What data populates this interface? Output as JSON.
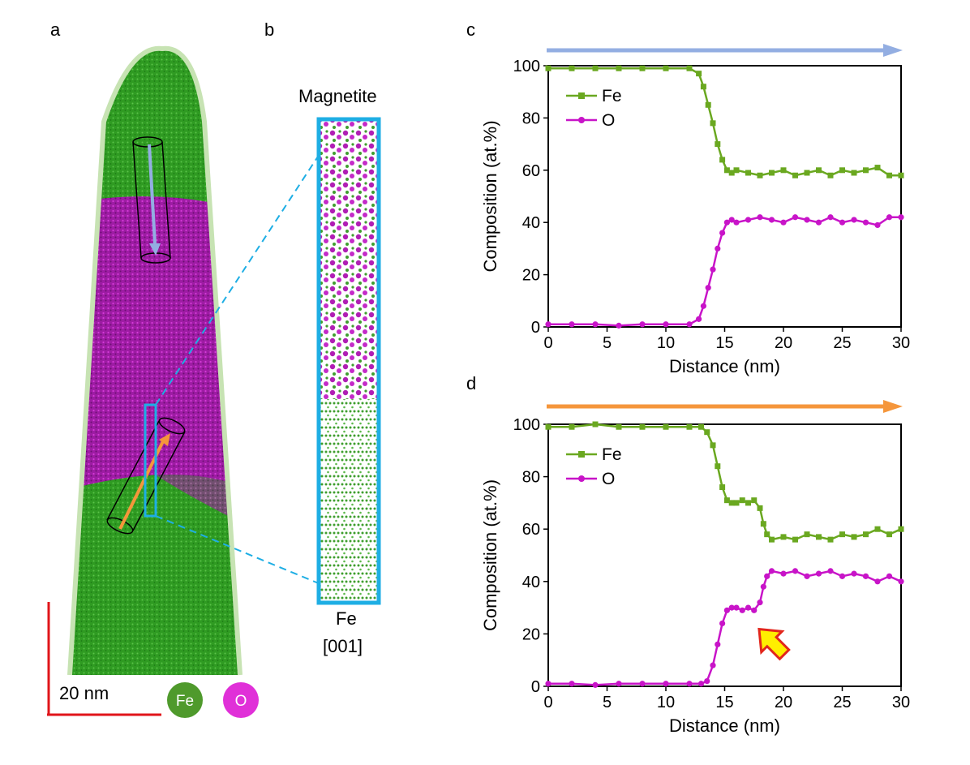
{
  "panels": {
    "a": "a",
    "b": "b",
    "c": "c",
    "d": "d"
  },
  "panel_a": {
    "scale_bar_label": "20 nm",
    "legend": [
      {
        "symbol": "Fe",
        "color": "#4f9a2c"
      },
      {
        "symbol": "O",
        "color": "#e030d8"
      }
    ],
    "colors": {
      "fe": "#2f9b22",
      "o": "#a01aa6",
      "outline": "#c7e3b3",
      "cylinder_top_arrow": "#93aee2",
      "cylinder_bottom_arrow": "#f5963b",
      "roi": "#1eaee4",
      "scale": "#e0141a"
    }
  },
  "panel_b": {
    "top_label": "Magnetite",
    "bottom_label_1": "Fe",
    "bottom_label_2": "[001]",
    "colors": {
      "frame": "#1eaee4",
      "fe": "#2f9b22",
      "o": "#a01aa6"
    }
  },
  "chart_data": [
    {
      "id": "c",
      "type": "line",
      "xlabel": "Distance (nm)",
      "ylabel": "Composition (at.%)",
      "xlim": [
        0,
        30
      ],
      "ylim": [
        0,
        100
      ],
      "xticks": [
        0,
        5,
        10,
        15,
        20,
        25,
        30
      ],
      "yticks": [
        0,
        20,
        40,
        60,
        80,
        100
      ],
      "arrow_color": "#93aee2",
      "legend": [
        "Fe",
        "O"
      ],
      "series": [
        {
          "name": "Fe",
          "color": "#6aa820",
          "marker": "square",
          "x": [
            0,
            2,
            4,
            6,
            8,
            10,
            12,
            12.8,
            13.2,
            13.6,
            14.0,
            14.4,
            14.8,
            15.2,
            15.6,
            16,
            17,
            18,
            19,
            20,
            21,
            22,
            23,
            24,
            25,
            26,
            27,
            28,
            29,
            30
          ],
          "y": [
            99,
            99,
            99,
            99,
            99,
            99,
            99,
            97,
            92,
            85,
            78,
            70,
            64,
            60,
            59,
            60,
            59,
            58,
            59,
            60,
            58,
            59,
            60,
            58,
            60,
            59,
            60,
            61,
            58,
            58
          ]
        },
        {
          "name": "O",
          "color": "#c814c8",
          "marker": "circle",
          "x": [
            0,
            2,
            4,
            6,
            8,
            10,
            12,
            12.8,
            13.2,
            13.6,
            14.0,
            14.4,
            14.8,
            15.2,
            15.6,
            16,
            17,
            18,
            19,
            20,
            21,
            22,
            23,
            24,
            25,
            26,
            27,
            28,
            29,
            30
          ],
          "y": [
            1,
            1,
            1,
            0.5,
            1,
            1,
            1,
            3,
            8,
            15,
            22,
            30,
            36,
            40,
            41,
            40,
            41,
            42,
            41,
            40,
            42,
            41,
            40,
            42,
            40,
            41,
            40,
            39,
            42,
            42
          ]
        }
      ]
    },
    {
      "id": "d",
      "type": "line",
      "xlabel": "Distance (nm)",
      "ylabel": "Composition (at.%)",
      "xlim": [
        0,
        30
      ],
      "ylim": [
        0,
        100
      ],
      "xticks": [
        0,
        5,
        10,
        15,
        20,
        25,
        30
      ],
      "yticks": [
        0,
        20,
        40,
        60,
        80,
        100
      ],
      "arrow_color": "#f5963b",
      "annotation_arrow": {
        "x": 19,
        "y": 17,
        "color": "#ffee00",
        "edge": "#e2261c"
      },
      "legend": [
        "Fe",
        "O"
      ],
      "series": [
        {
          "name": "Fe",
          "color": "#6aa820",
          "marker": "square",
          "x": [
            0,
            2,
            4,
            6,
            8,
            10,
            12,
            13,
            13.5,
            14,
            14.4,
            14.8,
            15.2,
            15.6,
            16,
            16.5,
            17,
            17.5,
            18,
            18.3,
            18.6,
            19,
            20,
            21,
            22,
            23,
            24,
            25,
            26,
            27,
            28,
            29,
            30
          ],
          "y": [
            99,
            99,
            100,
            99,
            99,
            99,
            99,
            99,
            97,
            92,
            84,
            76,
            71,
            70,
            70,
            71,
            70,
            71,
            68,
            62,
            58,
            56,
            57,
            56,
            58,
            57,
            56,
            58,
            57,
            58,
            60,
            58,
            60
          ]
        },
        {
          "name": "O",
          "color": "#c814c8",
          "marker": "circle",
          "x": [
            0,
            2,
            4,
            6,
            8,
            10,
            12,
            13,
            13.5,
            14,
            14.4,
            14.8,
            15.2,
            15.6,
            16,
            16.5,
            17,
            17.5,
            18,
            18.3,
            18.6,
            19,
            20,
            21,
            22,
            23,
            24,
            25,
            26,
            27,
            28,
            29,
            30
          ],
          "y": [
            1,
            1,
            0.5,
            1,
            1,
            1,
            1,
            1,
            2,
            8,
            16,
            24,
            29,
            30,
            30,
            29,
            30,
            29,
            32,
            38,
            42,
            44,
            43,
            44,
            42,
            43,
            44,
            42,
            43,
            42,
            40,
            42,
            40
          ]
        }
      ]
    }
  ]
}
